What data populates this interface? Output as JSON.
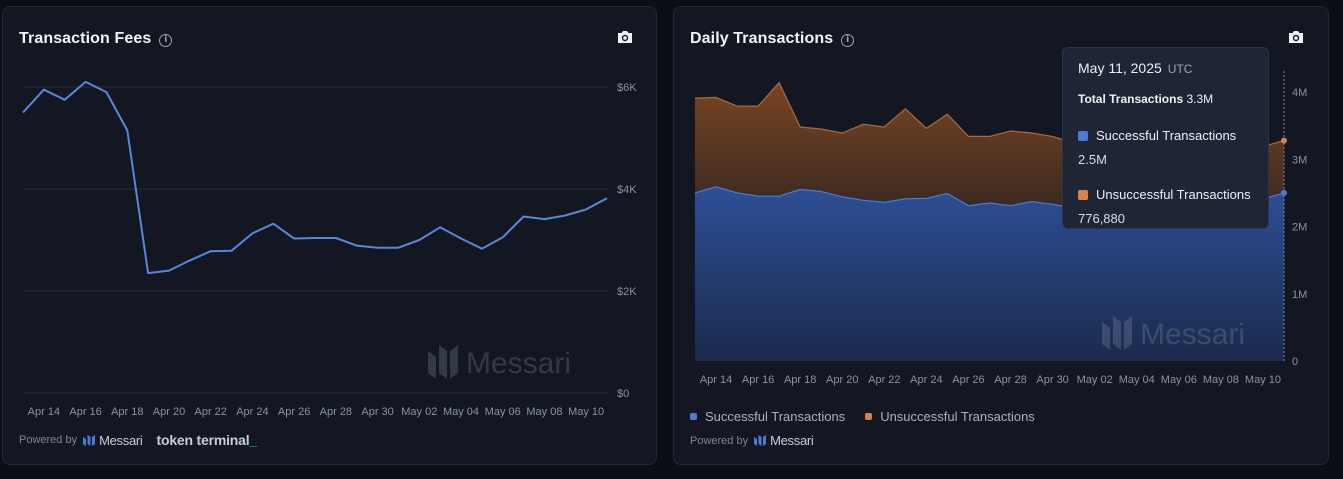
{
  "colors": {
    "successful": "#4f78d6",
    "unsuccessful": "#d9834a",
    "fees_line": "#5b85dc"
  },
  "watermark": "Messari",
  "panels": {
    "fees": {
      "title": "Transaction Fees",
      "powered_by": "Powered by",
      "messari_label": "Messari",
      "tokenterminal_label": "token terminal",
      "tokenterminal_suffix": "_"
    },
    "tx": {
      "title": "Daily Transactions",
      "powered_by": "Powered by",
      "messari_label": "Messari",
      "legend": [
        {
          "name": "Successful Transactions",
          "color": "#4f78d6"
        },
        {
          "name": "Unsuccessful Transactions",
          "color": "#d9834a"
        }
      ],
      "tooltip": {
        "date": "May 11, 2025",
        "tz": "UTC",
        "total_label": "Total Transactions",
        "total_value": "3.3M",
        "series1_label": "Successful Transactions",
        "series1_value": "2.5M",
        "series2_label": "Unsuccessful Transactions",
        "series2_value": "776,880"
      }
    }
  },
  "chart_data": [
    {
      "type": "line",
      "title": "Transaction Fees",
      "x_ticks": [
        "Apr 14",
        "Apr 16",
        "Apr 18",
        "Apr 20",
        "Apr 22",
        "Apr 24",
        "Apr 26",
        "Apr 28",
        "Apr 30",
        "May 02",
        "May 04",
        "May 06",
        "May 08",
        "May 10"
      ],
      "y_ticks": [
        "$0",
        "$2K",
        "$4K",
        "$6K"
      ],
      "ylim": [
        0,
        6000
      ],
      "y_axis_position": "right",
      "grid": true,
      "x": [
        "Apr 13",
        "Apr 14",
        "Apr 15",
        "Apr 16",
        "Apr 17",
        "Apr 18",
        "Apr 19",
        "Apr 20",
        "Apr 21",
        "Apr 22",
        "Apr 23",
        "Apr 24",
        "Apr 25",
        "Apr 26",
        "Apr 27",
        "Apr 28",
        "Apr 29",
        "Apr 30",
        "May 01",
        "May 02",
        "May 03",
        "May 04",
        "May 05",
        "May 06",
        "May 07",
        "May 08",
        "May 09",
        "May 10",
        "May 11"
      ],
      "series": [
        {
          "values": [
            5500,
            5950,
            5750,
            6100,
            5900,
            5150,
            2350,
            2400,
            2600,
            2780,
            2790,
            3130,
            3320,
            3030,
            3040,
            3040,
            2890,
            2850,
            2850,
            3000,
            3250,
            3030,
            2830,
            3050,
            3460,
            3410,
            3480,
            3600,
            3820
          ]
        }
      ]
    },
    {
      "type": "area",
      "stacked": true,
      "title": "Daily Transactions",
      "x_ticks": [
        "Apr 14",
        "Apr 16",
        "Apr 18",
        "Apr 20",
        "Apr 22",
        "Apr 24",
        "Apr 26",
        "Apr 28",
        "Apr 30",
        "May 02",
        "May 04",
        "May 06",
        "May 08",
        "May 10"
      ],
      "y_ticks": [
        "0",
        "1M",
        "2M",
        "3M",
        "4M"
      ],
      "ylim": [
        0,
        4000000
      ],
      "y_axis_position": "right",
      "legend_position": "bottom-left",
      "x": [
        "Apr 13",
        "Apr 14",
        "Apr 15",
        "Apr 16",
        "Apr 17",
        "Apr 18",
        "Apr 19",
        "Apr 20",
        "Apr 21",
        "Apr 22",
        "Apr 23",
        "Apr 24",
        "Apr 25",
        "Apr 26",
        "Apr 27",
        "Apr 28",
        "Apr 29",
        "Apr 30",
        "May 01",
        "May 02",
        "May 03",
        "May 04",
        "May 05",
        "May 06",
        "May 07",
        "May 08",
        "May 09",
        "May 10",
        "May 11"
      ],
      "series": [
        {
          "name": "Successful Transactions",
          "values": [
            2500000,
            2590000,
            2500000,
            2450000,
            2450000,
            2550000,
            2520000,
            2440000,
            2390000,
            2360000,
            2410000,
            2420000,
            2490000,
            2310000,
            2350000,
            2310000,
            2370000,
            2330000,
            2280000,
            2300000,
            2290000,
            2320000,
            2340000,
            2360000,
            2380000,
            2390000,
            2400000,
            2410000,
            2500000
          ]
        },
        {
          "name": "Unsuccessful Transactions",
          "values": [
            1410000,
            1330000,
            1290000,
            1340000,
            1690000,
            930000,
            930000,
            950000,
            1130000,
            1120000,
            1340000,
            1040000,
            1180000,
            1030000,
            990000,
            1110000,
            1020000,
            1010000,
            960000,
            900000,
            860000,
            850000,
            820000,
            810000,
            800000,
            790000,
            790000,
            780000,
            776880
          ]
        }
      ]
    }
  ]
}
